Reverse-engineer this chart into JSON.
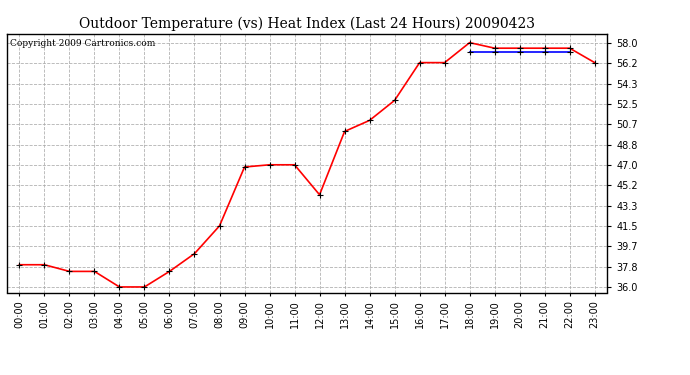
{
  "title": "Outdoor Temperature (vs) Heat Index (Last 24 Hours) 20090423",
  "copyright": "Copyright 2009 Cartronics.com",
  "x_labels": [
    "00:00",
    "01:00",
    "02:00",
    "03:00",
    "04:00",
    "05:00",
    "06:00",
    "07:00",
    "08:00",
    "09:00",
    "10:00",
    "11:00",
    "12:00",
    "13:00",
    "14:00",
    "15:00",
    "16:00",
    "17:00",
    "18:00",
    "19:00",
    "20:00",
    "21:00",
    "22:00",
    "23:00"
  ],
  "temp_data": [
    38.0,
    38.0,
    37.4,
    37.4,
    36.0,
    36.0,
    37.4,
    39.0,
    41.5,
    46.8,
    47.0,
    47.0,
    44.3,
    50.0,
    51.0,
    52.8,
    56.2,
    56.2,
    58.0,
    57.5,
    57.5,
    57.5,
    57.5,
    56.2
  ],
  "heat_index_data": [
    null,
    null,
    null,
    null,
    null,
    null,
    null,
    null,
    null,
    null,
    null,
    null,
    null,
    null,
    null,
    null,
    null,
    null,
    57.2,
    57.2,
    57.2,
    57.2,
    57.2,
    null
  ],
  "temp_color": "#ff0000",
  "heat_color": "#0000ff",
  "background_color": "#ffffff",
  "grid_color": "#aaaaaa",
  "ytick_labels": [
    "36.0",
    "37.8",
    "39.7",
    "41.5",
    "43.3",
    "45.2",
    "47.0",
    "48.8",
    "50.7",
    "52.5",
    "54.3",
    "56.2",
    "58.0"
  ],
  "ytick_values": [
    36.0,
    37.8,
    39.7,
    41.5,
    43.3,
    45.2,
    47.0,
    48.8,
    50.7,
    52.5,
    54.3,
    56.2,
    58.0
  ],
  "ylim": [
    35.5,
    58.8
  ],
  "marker": "+",
  "marker_size": 5,
  "linewidth": 1.2,
  "title_fontsize": 10,
  "tick_fontsize": 7,
  "copyright_fontsize": 6.5
}
